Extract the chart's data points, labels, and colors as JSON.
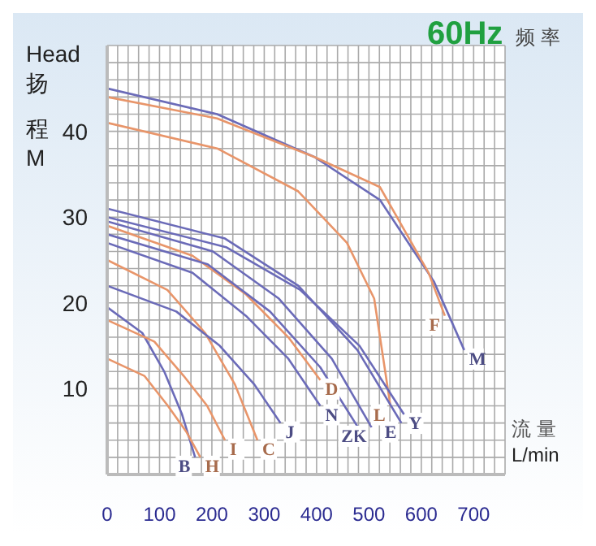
{
  "chart_data": {
    "type": "line",
    "title": "60Hz",
    "subtitle": "频 率",
    "xlabel": "流 量 L/min",
    "ylabel": "Head 扬程 M",
    "xlim": [
      0,
      760
    ],
    "ylim": [
      0,
      50
    ],
    "xticks": [
      0,
      {
        "value": 20,
        "label": null
      },
      {
        "value": 40,
        "label": null
      },
      {
        "value": 60,
        "label": null
      },
      {
        "value": 80,
        "label": null
      },
      100,
      {
        "value": 120,
        "label": null
      },
      {
        "value": 140,
        "label": null
      },
      {
        "value": 160,
        "label": null
      },
      {
        "value": 180,
        "label": null
      },
      200,
      {
        "value": 220,
        "label": null
      },
      {
        "value": 240,
        "label": null
      },
      {
        "value": 260,
        "label": null
      },
      {
        "value": 280,
        "label": null
      },
      300,
      {
        "value": 320,
        "label": null
      },
      {
        "value": 340,
        "label": null
      },
      {
        "value": 360,
        "label": null
      },
      {
        "value": 380,
        "label": null
      },
      400,
      {
        "value": 420,
        "label": null
      },
      {
        "value": 440,
        "label": null
      },
      {
        "value": 460,
        "label": null
      },
      {
        "value": 480,
        "label": null
      },
      500,
      {
        "value": 520,
        "label": null
      },
      {
        "value": 540,
        "label": null
      },
      {
        "value": 560,
        "label": null
      },
      {
        "value": 580,
        "label": null
      },
      600,
      {
        "value": 620,
        "label": null
      },
      {
        "value": 640,
        "label": null
      },
      {
        "value": 660,
        "label": null
      },
      {
        "value": 680,
        "label": null
      },
      700,
      {
        "value": 720,
        "label": null
      },
      {
        "value": 740,
        "label": null
      },
      {
        "value": 760,
        "label": null
      }
    ],
    "yticks": [
      {
        "value": 0,
        "label": null
      },
      {
        "value": 2,
        "label": null
      },
      {
        "value": 4,
        "label": null
      },
      {
        "value": 6,
        "label": null
      },
      {
        "value": 8,
        "label": null
      },
      10,
      {
        "value": 12,
        "label": null
      },
      {
        "value": 14,
        "label": null
      },
      {
        "value": 16,
        "label": null
      },
      {
        "value": 18,
        "label": null
      },
      20,
      {
        "value": 22,
        "label": null
      },
      {
        "value": 24,
        "label": null
      },
      {
        "value": 26,
        "label": null
      },
      {
        "value": 28,
        "label": null
      },
      30,
      {
        "value": 32,
        "label": null
      },
      {
        "value": 34,
        "label": null
      },
      {
        "value": 36,
        "label": null
      },
      {
        "value": 38,
        "label": null
      },
      40,
      {
        "value": 42,
        "label": null
      },
      {
        "value": 44,
        "label": null
      },
      {
        "value": 46,
        "label": null
      },
      {
        "value": 48,
        "label": null
      },
      {
        "value": 50,
        "label": null
      }
    ],
    "grid": true,
    "legend": false,
    "marker": "none",
    "line_style": "solid",
    "series": [
      {
        "name": "M",
        "color": "#6b6bb8",
        "x": [
          0,
          210,
          396,
          521,
          624,
          682
        ],
        "values": [
          45,
          42,
          37,
          32,
          22.5,
          14.5
        ]
      },
      {
        "name": "F",
        "color": "#e8956a",
        "x": [
          0,
          210,
          396,
          521,
          614,
          645
        ],
        "values": [
          44,
          41.5,
          37,
          33.5,
          23.5,
          18.5
        ]
      },
      {
        "name": "L",
        "color": "#e8956a",
        "x": [
          0,
          210,
          365,
          458,
          510,
          541
        ],
        "values": [
          41,
          38,
          33,
          27,
          20.5,
          8
        ]
      },
      {
        "name": "E",
        "color": "#6b6bb8",
        "x": [
          0,
          225,
          365,
          478,
          562
        ],
        "values": [
          31,
          27.5,
          22,
          14.5,
          6
        ]
      },
      {
        "name": "Y",
        "color": "#6b6bb8",
        "x": [
          0,
          227,
          369,
          482,
          567
        ],
        "values": [
          30,
          26.5,
          21.5,
          15,
          7
        ]
      },
      {
        "name": "K",
        "color": "#6b6bb8",
        "x": [
          0,
          202,
          328,
          429,
          505
        ],
        "values": [
          29.5,
          26,
          20.5,
          13.5,
          5.5
        ]
      },
      {
        "name": "D",
        "color": "#e8956a",
        "x": [
          0,
          163,
          265,
          346,
          407
        ],
        "values": [
          29,
          25.5,
          21,
          16,
          11
        ]
      },
      {
        "name": "Z",
        "color": "#6b6bb8",
        "x": [
          0,
          192,
          311,
          407,
          479
        ],
        "values": [
          28,
          24.5,
          19,
          12.5,
          5.5
        ]
      },
      {
        "name": "N",
        "color": "#6b6bb8",
        "x": [
          0,
          163,
          265,
          346,
          407
        ],
        "values": [
          27,
          23.5,
          18.5,
          13.5,
          8
        ]
      },
      {
        "name": "C",
        "color": "#e8956a",
        "x": [
          0,
          115,
          187,
          244,
          287
        ],
        "values": [
          25,
          21.5,
          16.5,
          10.5,
          4
        ]
      },
      {
        "name": "J",
        "color": "#6b6bb8",
        "x": [
          0,
          132,
          215,
          281,
          331
        ],
        "values": [
          22,
          19,
          15,
          10.5,
          6
        ]
      },
      {
        "name": "B",
        "color": "#6b6bb8",
        "x": [
          0,
          67,
          109,
          143,
          168
        ],
        "values": [
          19.5,
          16.5,
          12,
          7,
          2
        ]
      },
      {
        "name": "I",
        "color": "#e8956a",
        "x": [
          0,
          90,
          146,
          191,
          225
        ],
        "values": [
          18,
          15.5,
          11.5,
          8,
          4
        ]
      },
      {
        "name": "H",
        "color": "#e8956a",
        "x": [
          0,
          71,
          116,
          151,
          178
        ],
        "values": [
          13.5,
          11.5,
          8,
          5,
          2
        ]
      }
    ]
  }
}
